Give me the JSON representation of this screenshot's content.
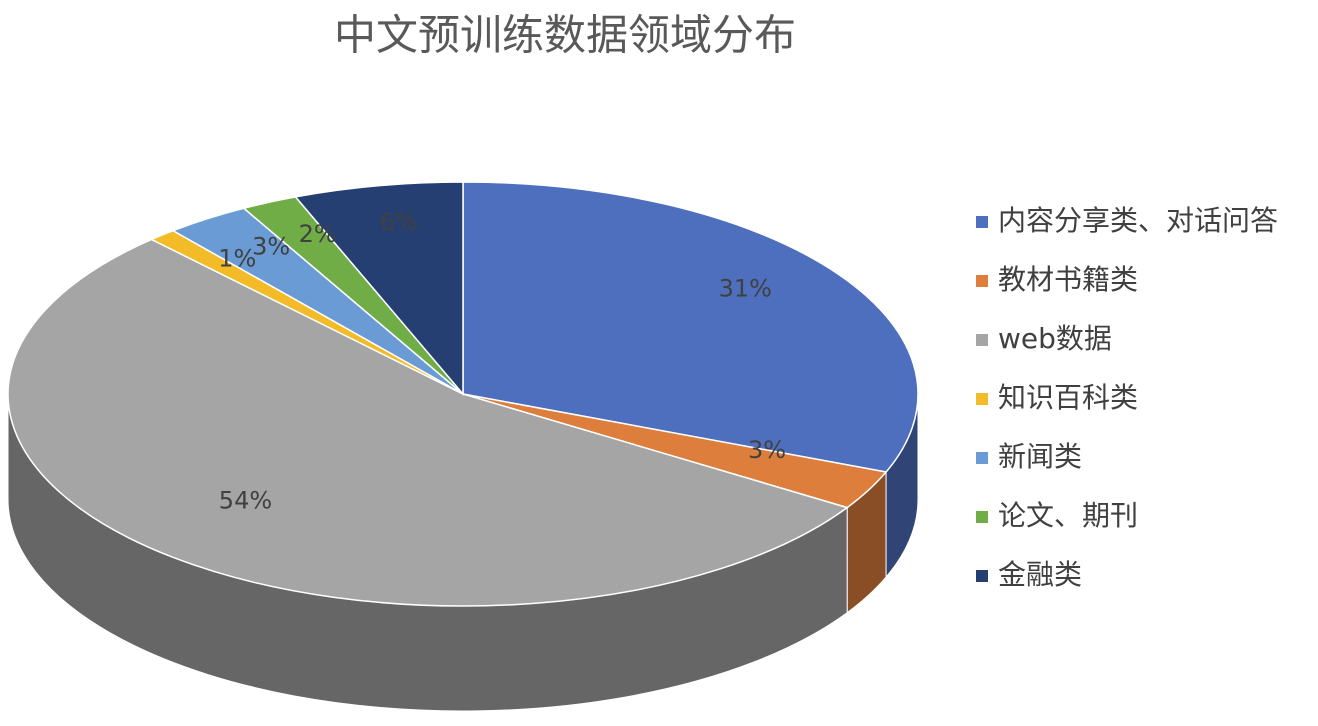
{
  "chart_data": {
    "type": "pie",
    "title": "中文预训练数据领域分布",
    "categories": [
      "内容分享类、对话问答",
      "教材书籍类",
      "web数据",
      "知识百科类",
      "新闻类",
      "论文、期刊",
      "金融类"
    ],
    "values": [
      31,
      3,
      54,
      1,
      3,
      2,
      6
    ],
    "value_labels": [
      "31%",
      "3%",
      "54%",
      "1%",
      "3%",
      "2%",
      "6%"
    ],
    "colors": [
      "#4d6fbd",
      "#dd7e3c",
      "#a5a5a5",
      "#f3bb27",
      "#6a9bd5",
      "#70ad47",
      "#263f73"
    ],
    "legend": "right"
  }
}
